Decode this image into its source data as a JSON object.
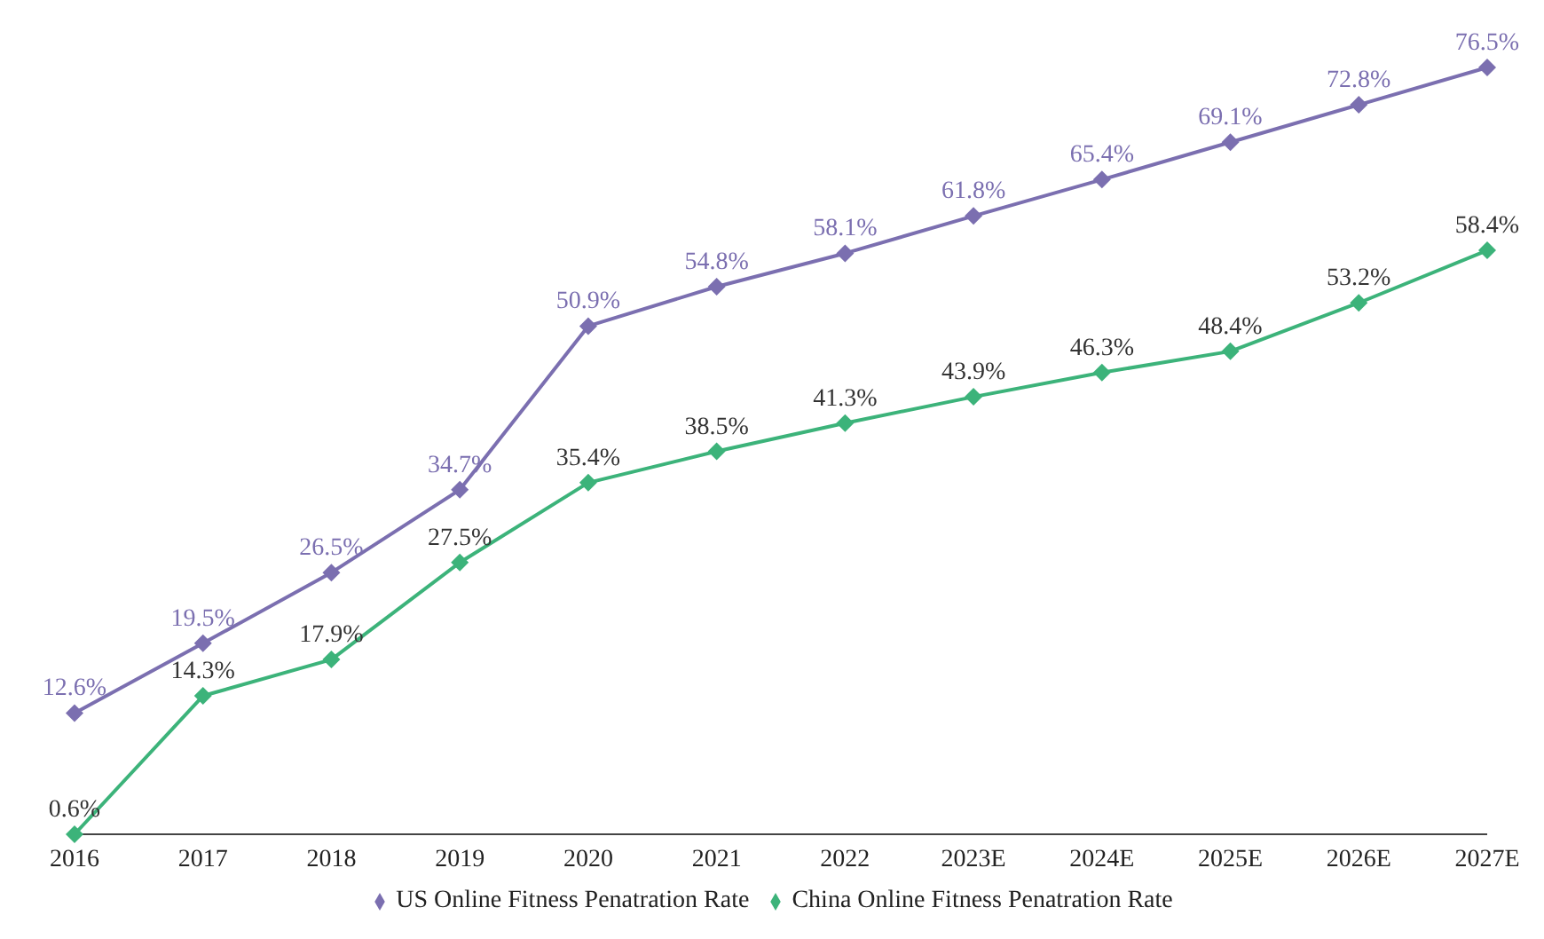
{
  "chart_data": {
    "type": "line",
    "categories": [
      "2016",
      "2017",
      "2018",
      "2019",
      "2020",
      "2021",
      "2022",
      "2023E",
      "2024E",
      "2025E",
      "2026E",
      "2027E"
    ],
    "series": [
      {
        "name": "US Online Fitness Penatration Rate",
        "color": "#7b6fb0",
        "values": [
          12.6,
          19.5,
          26.5,
          34.7,
          50.9,
          54.8,
          58.1,
          61.8,
          65.4,
          69.1,
          72.8,
          76.5
        ],
        "value_labels": [
          "12.6%",
          "19.5%",
          "26.5%",
          "34.7%",
          "50.9%",
          "54.8%",
          "58.1%",
          "61.8%",
          "65.4%",
          "69.1%",
          "72.8%",
          "76.5%"
        ]
      },
      {
        "name": "China Online Fitness Penatration Rate",
        "color": "#3cb37a",
        "values": [
          0.6,
          14.3,
          17.9,
          27.5,
          35.4,
          38.5,
          41.3,
          43.9,
          46.3,
          48.4,
          53.2,
          58.4
        ],
        "value_labels": [
          "0.6%",
          "14.3%",
          "17.9%",
          "27.5%",
          "35.4%",
          "38.5%",
          "41.3%",
          "43.9%",
          "46.3%",
          "48.4%",
          "53.2%",
          "58.4%"
        ]
      }
    ],
    "legend": "bottom",
    "marker": "diamond",
    "grid": false,
    "tick_labels": "x"
  }
}
